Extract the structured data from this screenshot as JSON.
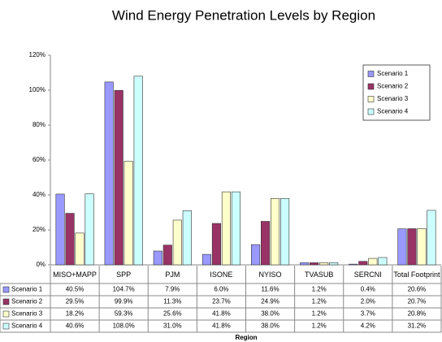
{
  "chart_data": {
    "type": "bar",
    "title": "Wind Energy Penetration Levels by Region",
    "x_label": "Region",
    "categories": [
      "MISO+MAPP",
      "SPP",
      "PJM",
      "ISONE",
      "NYISO",
      "TVASUB",
      "SERCNI",
      "Total Footprint"
    ],
    "series": [
      {
        "name": "Scenario 1",
        "color": "#9999ff",
        "values": [
          40.5,
          104.7,
          7.9,
          6.0,
          11.6,
          1.2,
          0.4,
          20.6
        ],
        "value_labels": [
          "40.5%",
          "104.7%",
          "7.9%",
          "6.0%",
          "11.6%",
          "1.2%",
          "0.4%",
          "20.6%"
        ]
      },
      {
        "name": "Scenario 2",
        "color": "#993366",
        "values": [
          29.5,
          99.9,
          11.3,
          23.7,
          24.9,
          1.2,
          2.0,
          20.7
        ],
        "value_labels": [
          "29.5%",
          "99.9%",
          "11.3%",
          "23.7%",
          "24.9%",
          "1.2%",
          "2.0%",
          "20.7%"
        ]
      },
      {
        "name": "Scenario 3",
        "color": "#ffffcc",
        "values": [
          18.2,
          59.3,
          25.6,
          41.8,
          38.0,
          1.2,
          3.7,
          20.8
        ],
        "value_labels": [
          "18.2%",
          "59.3%",
          "25.6%",
          "41.8%",
          "38.0%",
          "1.2%",
          "3.7%",
          "20.8%"
        ]
      },
      {
        "name": "Scenario 4",
        "color": "#ccffff",
        "values": [
          40.6,
          108.0,
          31.0,
          41.8,
          38.0,
          1.2,
          4.2,
          31.2
        ],
        "value_labels": [
          "40.6%",
          "108.0%",
          "31.0%",
          "41.8%",
          "38.0%",
          "1.2%",
          "4.2%",
          "31.2%"
        ]
      }
    ],
    "ylim": [
      0,
      120
    ],
    "yticks": [
      {
        "value": 0,
        "label": "0%"
      },
      {
        "value": 20,
        "label": "20%"
      },
      {
        "value": 40,
        "label": "40%"
      },
      {
        "value": 60,
        "label": "60%"
      },
      {
        "value": 80,
        "label": "80%"
      },
      {
        "value": 100,
        "label": "100%"
      },
      {
        "value": 120,
        "label": "120%"
      }
    ],
    "legend": "upper right"
  }
}
